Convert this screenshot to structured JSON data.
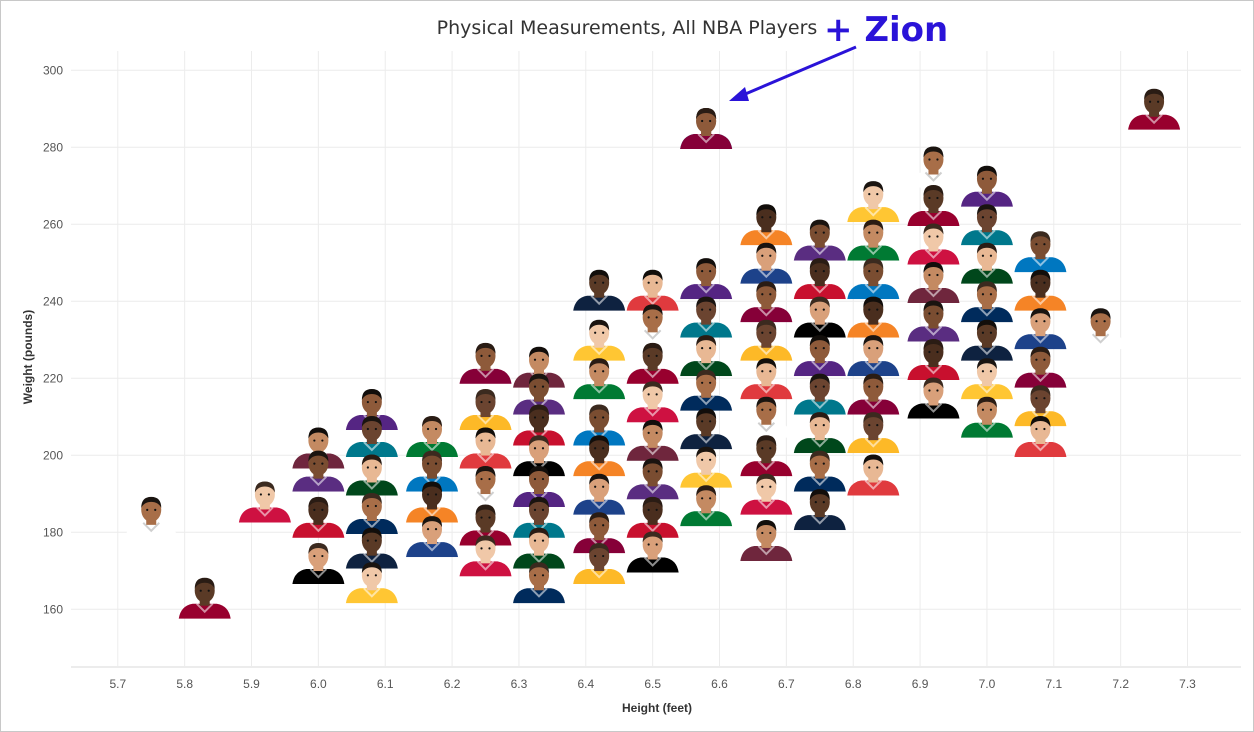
{
  "chart_data": {
    "type": "scatter",
    "title": "Physical Measurements, All NBA Players",
    "annotation": {
      "text": "+ Zion",
      "color": "#2a13d8",
      "points_to": "Zion Williamson"
    },
    "xlabel": "Height (feet)",
    "ylabel": "Weight (pounds)",
    "xlim": [
      5.63,
      7.38
    ],
    "ylim": [
      145,
      305
    ],
    "x_ticks": [
      "5.7",
      "5.8",
      "5.9",
      "6.0",
      "6.1",
      "6.2",
      "6.3",
      "6.4",
      "6.5",
      "6.6",
      "6.7",
      "6.8",
      "6.9",
      "7.0",
      "7.1",
      "7.2",
      "7.3"
    ],
    "y_ticks": [
      "160",
      "180",
      "200",
      "220",
      "240",
      "260",
      "280",
      "300"
    ],
    "grid": true,
    "legend": "none",
    "marker": "player headshot",
    "highlight": {
      "name": "Zion Williamson",
      "x": 6.58,
      "y": 285
    },
    "points": [
      {
        "x": 5.75,
        "y": 184
      },
      {
        "x": 5.83,
        "y": 163
      },
      {
        "x": 5.92,
        "y": 188
      },
      {
        "x": 6.0,
        "y": 202
      },
      {
        "x": 6.0,
        "y": 196
      },
      {
        "x": 6.0,
        "y": 184
      },
      {
        "x": 6.0,
        "y": 172
      },
      {
        "x": 6.08,
        "y": 212
      },
      {
        "x": 6.08,
        "y": 205
      },
      {
        "x": 6.08,
        "y": 195
      },
      {
        "x": 6.08,
        "y": 185
      },
      {
        "x": 6.08,
        "y": 176
      },
      {
        "x": 6.08,
        "y": 167
      },
      {
        "x": 6.17,
        "y": 205
      },
      {
        "x": 6.17,
        "y": 196
      },
      {
        "x": 6.17,
        "y": 188
      },
      {
        "x": 6.17,
        "y": 179
      },
      {
        "x": 6.25,
        "y": 224
      },
      {
        "x": 6.25,
        "y": 212
      },
      {
        "x": 6.25,
        "y": 202
      },
      {
        "x": 6.25,
        "y": 192
      },
      {
        "x": 6.25,
        "y": 182
      },
      {
        "x": 6.25,
        "y": 174
      },
      {
        "x": 6.33,
        "y": 223
      },
      {
        "x": 6.33,
        "y": 216
      },
      {
        "x": 6.33,
        "y": 208
      },
      {
        "x": 6.33,
        "y": 200
      },
      {
        "x": 6.33,
        "y": 192
      },
      {
        "x": 6.33,
        "y": 184
      },
      {
        "x": 6.33,
        "y": 176
      },
      {
        "x": 6.33,
        "y": 167
      },
      {
        "x": 6.42,
        "y": 243
      },
      {
        "x": 6.42,
        "y": 230
      },
      {
        "x": 6.42,
        "y": 220
      },
      {
        "x": 6.42,
        "y": 208
      },
      {
        "x": 6.42,
        "y": 200
      },
      {
        "x": 6.42,
        "y": 190
      },
      {
        "x": 6.42,
        "y": 180
      },
      {
        "x": 6.42,
        "y": 172
      },
      {
        "x": 6.5,
        "y": 243
      },
      {
        "x": 6.5,
        "y": 234
      },
      {
        "x": 6.5,
        "y": 224
      },
      {
        "x": 6.5,
        "y": 214
      },
      {
        "x": 6.5,
        "y": 204
      },
      {
        "x": 6.5,
        "y": 194
      },
      {
        "x": 6.5,
        "y": 184
      },
      {
        "x": 6.5,
        "y": 175
      },
      {
        "x": 6.58,
        "y": 246
      },
      {
        "x": 6.58,
        "y": 236
      },
      {
        "x": 6.58,
        "y": 226
      },
      {
        "x": 6.58,
        "y": 217
      },
      {
        "x": 6.58,
        "y": 207
      },
      {
        "x": 6.58,
        "y": 197
      },
      {
        "x": 6.58,
        "y": 187
      },
      {
        "x": 6.58,
        "y": 285
      },
      {
        "x": 6.67,
        "y": 260
      },
      {
        "x": 6.67,
        "y": 250
      },
      {
        "x": 6.67,
        "y": 240
      },
      {
        "x": 6.67,
        "y": 230
      },
      {
        "x": 6.67,
        "y": 220
      },
      {
        "x": 6.67,
        "y": 210
      },
      {
        "x": 6.67,
        "y": 200
      },
      {
        "x": 6.67,
        "y": 190
      },
      {
        "x": 6.67,
        "y": 178
      },
      {
        "x": 6.75,
        "y": 256
      },
      {
        "x": 6.75,
        "y": 246
      },
      {
        "x": 6.75,
        "y": 236
      },
      {
        "x": 6.75,
        "y": 226
      },
      {
        "x": 6.75,
        "y": 216
      },
      {
        "x": 6.75,
        "y": 206
      },
      {
        "x": 6.75,
        "y": 196
      },
      {
        "x": 6.75,
        "y": 186
      },
      {
        "x": 6.83,
        "y": 266
      },
      {
        "x": 6.83,
        "y": 256
      },
      {
        "x": 6.83,
        "y": 246
      },
      {
        "x": 6.83,
        "y": 236
      },
      {
        "x": 6.83,
        "y": 226
      },
      {
        "x": 6.83,
        "y": 216
      },
      {
        "x": 6.83,
        "y": 206
      },
      {
        "x": 6.83,
        "y": 195
      },
      {
        "x": 6.92,
        "y": 275
      },
      {
        "x": 6.92,
        "y": 265
      },
      {
        "x": 6.92,
        "y": 255
      },
      {
        "x": 6.92,
        "y": 245
      },
      {
        "x": 6.92,
        "y": 235
      },
      {
        "x": 6.92,
        "y": 225
      },
      {
        "x": 6.92,
        "y": 215
      },
      {
        "x": 7.0,
        "y": 270
      },
      {
        "x": 7.0,
        "y": 260
      },
      {
        "x": 7.0,
        "y": 250
      },
      {
        "x": 7.0,
        "y": 240
      },
      {
        "x": 7.0,
        "y": 230
      },
      {
        "x": 7.0,
        "y": 220
      },
      {
        "x": 7.0,
        "y": 210
      },
      {
        "x": 7.08,
        "y": 253
      },
      {
        "x": 7.08,
        "y": 243
      },
      {
        "x": 7.08,
        "y": 233
      },
      {
        "x": 7.08,
        "y": 223
      },
      {
        "x": 7.08,
        "y": 213
      },
      {
        "x": 7.08,
        "y": 205
      },
      {
        "x": 7.17,
        "y": 233
      },
      {
        "x": 7.25,
        "y": 290
      }
    ]
  },
  "palette": {
    "skin": [
      "#5a3a26",
      "#7a4d31",
      "#8e5a3a",
      "#a86e48",
      "#c48a62",
      "#d9a07a",
      "#e8b894",
      "#f0c8a8",
      "#4a2e1e",
      "#6b4430"
    ],
    "jersey": [
      "#c8102e",
      "#1d428a",
      "#552583",
      "#fdb927",
      "#00471b",
      "#ffffff",
      "#0e2240",
      "#ce1141",
      "#007a33",
      "#5a2d81",
      "#f58426",
      "#000000",
      "#860038",
      "#00788c",
      "#e03a3e",
      "#002b5c",
      "#98002e",
      "#ffc633",
      "#6f263d",
      "#0077c0"
    ],
    "gridline": "#ececec",
    "annotation": "#2a13d8"
  }
}
